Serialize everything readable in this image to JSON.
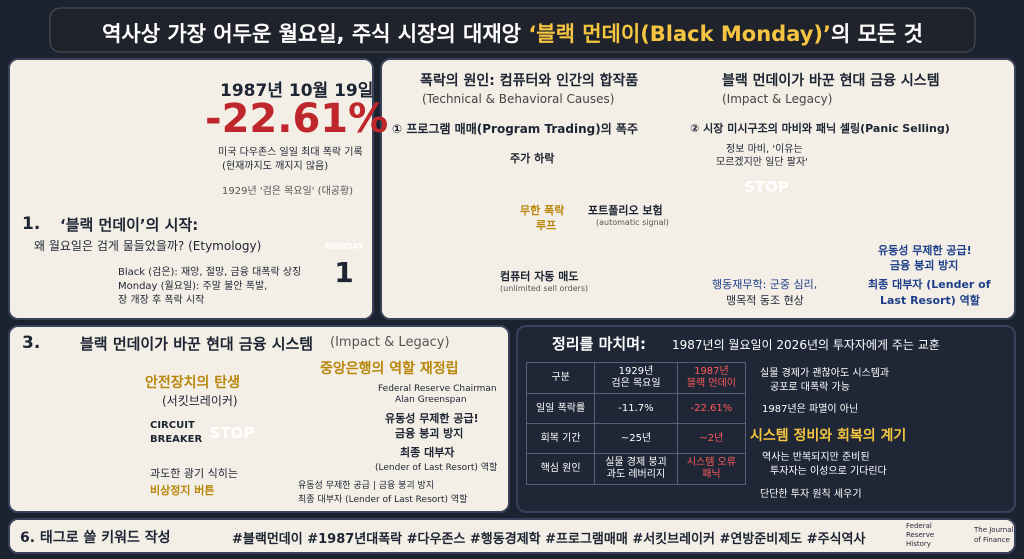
{
  "header": {
    "prefix": "역사상 가장 어두운 월요일, 주식 시장의 대재앙 ",
    "highlight": "‘블랙 먼데이(Black Monday)’",
    "suffix": "의 모든 것"
  },
  "crash": {
    "date": "1987년 10월 19일",
    "drop": "-22.61%",
    "note": [
      "미국 다우존스 일일 최대 폭락 기록",
      "(현재까지도 깨지지 않음)"
    ],
    "compare": "1929년 '검은 목요일' (대공황)"
  },
  "origin": {
    "number": "1.",
    "title": "‘블랙 먼데이’의 시작:",
    "subtitle": "왜 월요일은 검게 물들었을까? (Etymology)",
    "bullets": [
      "Black (검은): 재앙, 절망, 금융 대폭락 상징",
      "Monday (월요일): 주말 불안 폭발,",
      "장 개장 후 폭락 시작"
    ],
    "calendar": {
      "day": "MONDAY",
      "date": "1"
    }
  },
  "causes": {
    "title": "폭락의 원인: 컴퓨터와 인간의 합작품",
    "subtitle": "(Technical & Behavioral Causes)",
    "program": "① 프로그램 매매(Program Trading)의 폭주",
    "loop": {
      "top": "주가 하락",
      "right": "포트폴리오 보험",
      "right_note": "(automatic signal)",
      "bottom": "컴퓨터 자동 매도",
      "bottom_note": "(unlimited sell orders)",
      "center": [
        "무한 폭락",
        "루프"
      ]
    }
  },
  "impact": {
    "title": "블랙 먼데이가 바꾼 현대 금융 시스템",
    "subtitle": "(Impact & Legacy)",
    "panic": "② 시장 미시구조의 마비와 패닉 셀링(Panic Selling)",
    "quote": [
      "정보 마비, '이유는",
      "모르겠지만 일단 팔자'"
    ],
    "stop": "STOP",
    "behavior": [
      "행동재무학: 군중 심리,",
      "맹목적 동조 현상"
    ],
    "liquidity": [
      "유동성 무제한 공급!",
      "금융 붕괴 방지"
    ],
    "lender": [
      "최종 대부자 (Lender of",
      "Last Resort) 역할"
    ]
  },
  "section3": {
    "number": "3.",
    "title": "블랙 먼데이가 바꾼 현대 금융 시스템",
    "subtitle": "(Impact & Legacy)",
    "breaker": {
      "title": "안전장치의 탄생",
      "subtitle": "(서킷브레이커)",
      "label": [
        "CIRCUIT",
        "BREAKER"
      ],
      "stop": "STOP",
      "desc": "과도한 광기 식히는",
      "highlight": "비상정지 버튼"
    },
    "fed": {
      "title": "중앙은행의 역할 재정립",
      "chair": [
        "Federal Reserve Chairman",
        "Alan Greenspan"
      ],
      "liquidity": [
        "유동성 무제한 공급!",
        "금융 붕괴 방지"
      ],
      "lender": "최종 대부자",
      "lender_note": "(Lender of Last Resort) 역할",
      "caption": [
        "유동성 무제한 공급 | 금융 붕괴 방지",
        "최종 대부자 (Lender of Last Resort) 역할"
      ]
    }
  },
  "summary": {
    "title": "정리를 마치며:",
    "subtitle": "1987년의 월요일이 2026년의 투자자에게 주는 교훈",
    "table": {
      "header": [
        "구분",
        [
          "1929년",
          "검은 목요일"
        ],
        [
          "1987년",
          "블랙 먼데이"
        ]
      ],
      "rows": [
        [
          "일일 폭락률",
          "-11.7%",
          "-22.61%"
        ],
        [
          "회복 기간",
          "~25년",
          "~2년"
        ],
        [
          "핵심 원인",
          [
            "실물 경제 붕괴",
            "과도 레버리지"
          ],
          [
            "시스템 오류",
            "패닉"
          ]
        ]
      ]
    },
    "lessons": [
      [
        "실물 경제가 괜찮아도 시스템과",
        "공포로 대폭락 가능"
      ],
      [
        "1987년은 파멸이 아닌"
      ]
    ],
    "highlight": "시스템 정비와 회복의 계기",
    "lessons2": [
      [
        "역사는 반복되지만 준비된",
        "투자자는 이성으로 기다린다"
      ],
      [
        "단단한 투자 원칙 세우기"
      ]
    ]
  },
  "footer": {
    "title": "6. 태그로 쓸 키워드 작성",
    "tags": "#블랙먼데이 #1987년대폭락 #다우존스 #행동경제학 #프로그램매매 #서킷브레이커 #연방준비제도 #주식역사",
    "logos": [
      [
        "Federal",
        "Reserve",
        "History"
      ],
      [
        "The Journal",
        "of Finance"
      ]
    ]
  }
}
